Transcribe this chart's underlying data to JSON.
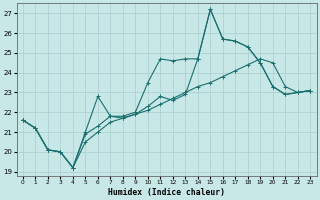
{
  "xlabel": "Humidex (Indice chaleur)",
  "xlim": [
    -0.5,
    23.5
  ],
  "ylim": [
    18.8,
    27.5
  ],
  "yticks": [
    19,
    20,
    21,
    22,
    23,
    24,
    25,
    26,
    27
  ],
  "xticks": [
    0,
    1,
    2,
    3,
    4,
    5,
    6,
    7,
    8,
    9,
    10,
    11,
    12,
    13,
    14,
    15,
    16,
    17,
    18,
    19,
    20,
    21,
    22,
    23
  ],
  "bg_color": "#c8e8e8",
  "grid_color": "#a8cccc",
  "line_color": "#1a6e6e",
  "line1_y": [
    21.6,
    21.2,
    20.1,
    20.0,
    19.2,
    21.0,
    22.8,
    21.8,
    21.7,
    21.9,
    22.3,
    22.8,
    22.6,
    22.9,
    24.7,
    27.2,
    25.7,
    25.6,
    25.3,
    24.5,
    23.3,
    22.9,
    23.0,
    23.1
  ],
  "line2_y": [
    21.6,
    21.2,
    20.1,
    20.0,
    19.2,
    20.9,
    21.3,
    21.8,
    21.8,
    22.0,
    23.5,
    24.7,
    24.6,
    24.7,
    24.7,
    27.2,
    25.7,
    25.6,
    25.3,
    24.5,
    23.3,
    22.9,
    23.0,
    23.1
  ],
  "line3_y": [
    21.6,
    21.2,
    20.1,
    20.0,
    19.2,
    20.5,
    21.0,
    21.5,
    21.7,
    21.9,
    22.1,
    22.4,
    22.7,
    23.0,
    23.3,
    23.5,
    23.8,
    24.1,
    24.4,
    24.7,
    24.5,
    23.3,
    23.0,
    23.1
  ]
}
